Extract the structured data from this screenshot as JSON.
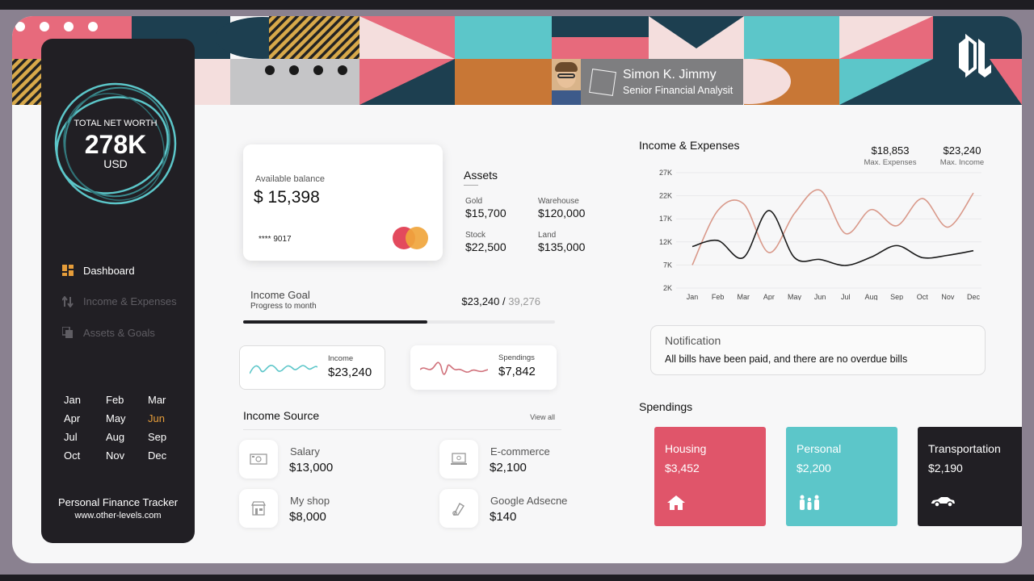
{
  "profile": {
    "name": "Simon K. Jimmy",
    "role": "Senior Financial Analysit"
  },
  "sidebar": {
    "net_worth": {
      "label": "TOTAL NET WORTH",
      "value": "278K",
      "unit": "USD"
    },
    "nav": [
      {
        "label": "Dashboard",
        "icon": "dashboard-icon",
        "active": true
      },
      {
        "label": "Income & Expenses",
        "icon": "transfer-arrows-icon",
        "active": false
      },
      {
        "label": "Assets & Goals",
        "icon": "copy-icon",
        "active": false
      }
    ],
    "months": [
      "Jan",
      "Feb",
      "Mar",
      "Apr",
      "May",
      "Jun",
      "Jul",
      "Aug",
      "Sep",
      "Oct",
      "Nov",
      "Dec"
    ],
    "selected_month": "Jun",
    "title": "Personal Finance Tracker",
    "url": "www.other-levels.com"
  },
  "balance": {
    "label": "Available balance",
    "value": "$ 15,398",
    "card_number": "**** 9017"
  },
  "assets": {
    "title": "Assets",
    "items": [
      {
        "label": "Gold",
        "value": "$15,700"
      },
      {
        "label": "Warehouse",
        "value": "$120,000"
      },
      {
        "label": "Stock",
        "value": "$22,500"
      },
      {
        "label": "Land",
        "value": "$135,000"
      }
    ]
  },
  "goal": {
    "title": "Income Goal",
    "subtitle": "Progress to month",
    "current": "$23,240",
    "separator": " / ",
    "target": "39,276",
    "progress": 0.59
  },
  "mini": {
    "income": {
      "label": "Income",
      "value": "$23,240"
    },
    "spendings": {
      "label": "Spendings",
      "value": "$7,842"
    }
  },
  "income_source": {
    "title": "Income Source",
    "view_all": "View all",
    "items": [
      {
        "label": "Salary",
        "value": "$13,000",
        "icon": "cash-icon"
      },
      {
        "label": "E-commerce",
        "value": "$2,100",
        "icon": "laptop-icon"
      },
      {
        "label": "My shop",
        "value": "$8,000",
        "icon": "shop-icon"
      },
      {
        "label": "Google Adsecne",
        "value": "$140",
        "icon": "adsense-icon"
      }
    ]
  },
  "income_expenses": {
    "title": "Income & Expenses",
    "max_expenses": {
      "value": "$18,853",
      "label": "Max. Expenses"
    },
    "max_income": {
      "value": "$23,240",
      "label": "Max. Income"
    }
  },
  "chart_data": {
    "type": "line",
    "title": "Income & Expenses",
    "x": [
      "Jan",
      "Feb",
      "Mar",
      "Apr",
      "May",
      "Jun",
      "Jul",
      "Aug",
      "Sep",
      "Oct",
      "Nov",
      "Dec"
    ],
    "yticks": [
      "27K",
      "22K",
      "17K",
      "12K",
      "7K",
      "2K"
    ],
    "ylim": [
      2000,
      27000
    ],
    "grid": true,
    "colors": {
      "income": "#d9998a",
      "expenses": "#1a1a1a"
    },
    "series": [
      {
        "values": [
          7000,
          18800,
          20300,
          9700,
          18200,
          23200,
          13800,
          19000,
          15500,
          21400,
          15200,
          22600
        ]
      },
      {
        "values": [
          11000,
          12300,
          8600,
          18800,
          8600,
          8200,
          6900,
          8700,
          11200,
          8600,
          9100,
          10100
        ]
      }
    ]
  },
  "notification": {
    "title": "Notification",
    "text": "All bills have been paid, and there are no overdue bills"
  },
  "spendings": {
    "title": "Spendings",
    "items": [
      {
        "label": "Housing",
        "value": "$3,452",
        "icon": "house-icon",
        "color": "#e0556a"
      },
      {
        "label": "Personal",
        "value": "$2,200",
        "icon": "family-icon",
        "color": "#5cc6c9"
      },
      {
        "label": "Transportation",
        "value": "$2,190",
        "icon": "car-icon",
        "color": "#211f24"
      }
    ]
  },
  "palette": {
    "pink": "#e76a7c",
    "teal": "#5cc6c9",
    "navy": "#1d3f50",
    "orange": "#c87736",
    "light_pink": "#f4dedd"
  }
}
